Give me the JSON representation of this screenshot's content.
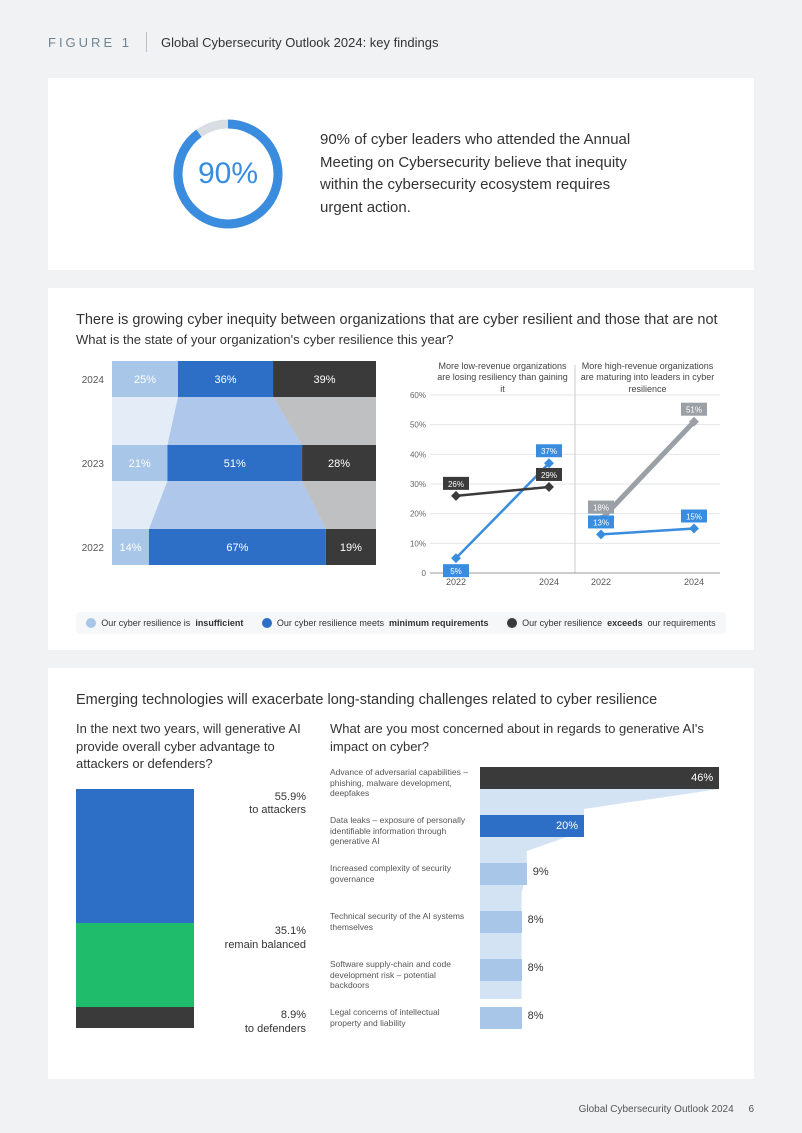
{
  "header": {
    "figure_label": "FIGURE 1",
    "title": "Global Cybersecurity Outlook 2024: key findings"
  },
  "hero": {
    "donut": {
      "percent": 90,
      "display": "90%",
      "ring_color": "#3a8dde",
      "track_color": "#d7dde3",
      "stroke_width": 9
    },
    "text_pct": "90%",
    "text_rest": " of cyber leaders who attended the Annual Meeting on Cybersecurity believe that inequity within the cybersecurity ecosystem requires urgent action."
  },
  "inequity": {
    "title": "There is growing cyber inequity between organizations that are cyber resilient and those that are not",
    "subtitle": "What is the state of your organization's cyber resilience this year?",
    "stacked": {
      "type": "stacked-bar-horizontal",
      "years": [
        "2024",
        "2023",
        "2022"
      ],
      "series_colors": [
        "#a7c6e8",
        "#2d6fc7",
        "#3a3a3a"
      ],
      "rows": [
        {
          "year": "2024",
          "values": [
            25,
            36,
            39
          ],
          "labels": [
            "25%",
            "36%",
            "39%"
          ]
        },
        {
          "year": "2023",
          "values": [
            21,
            51,
            28
          ],
          "labels": [
            "21%",
            "51%",
            "28%"
          ]
        },
        {
          "year": "2022",
          "values": [
            14,
            67,
            19
          ],
          "labels": [
            "14%",
            "67%",
            "19%"
          ]
        }
      ],
      "connector_color": "#cddff0"
    },
    "legend": [
      {
        "color": "#a7c6e8",
        "pre": "Our cyber resilience is ",
        "bold": "insufficient",
        "post": ""
      },
      {
        "color": "#2d6fc7",
        "pre": "Our cyber resilience meets ",
        "bold": "minimum requirements",
        "post": ""
      },
      {
        "color": "#3a3a3a",
        "pre": "Our cyber resilience ",
        "bold": "exceeds",
        "post": " our requirements"
      }
    ],
    "linecharts": {
      "type": "line",
      "ylim": [
        0,
        60
      ],
      "yticks": [
        0,
        "10%",
        "20%",
        "30%",
        "40%",
        "50%",
        "60%"
      ],
      "xticks": [
        "2022",
        "2024"
      ],
      "grid_color": "#e3e6e9",
      "axis_color": "#999",
      "panels": [
        {
          "title": "More low-revenue organizations are losing resiliency than gaining it",
          "series": [
            {
              "color": "#3a8dde",
              "marker": "diamond",
              "points": [
                {
                  "x": 0,
                  "y": 5,
                  "label": "5%"
                },
                {
                  "x": 1,
                  "y": 37,
                  "label": "37%"
                }
              ]
            },
            {
              "color": "#3a3a3a",
              "marker": "diamond",
              "points": [
                {
                  "x": 0,
                  "y": 26,
                  "label": "26%"
                },
                {
                  "x": 1,
                  "y": 29,
                  "label": "29%"
                }
              ]
            }
          ]
        },
        {
          "title": "More high-revenue organizations are maturing into leaders in cyber resilience",
          "series": [
            {
              "color": "#9aa0a6",
              "stroke_width": 5,
              "marker": "diamond",
              "points": [
                {
                  "x": 0,
                  "y": 18,
                  "label": "18%"
                },
                {
                  "x": 1,
                  "y": 51,
                  "label": "51%"
                }
              ]
            },
            {
              "color": "#3a8dde",
              "marker": "diamond",
              "points": [
                {
                  "x": 0,
                  "y": 13,
                  "label": "13%"
                },
                {
                  "x": 1,
                  "y": 15,
                  "label": "15%"
                }
              ]
            }
          ]
        }
      ]
    }
  },
  "emerging": {
    "title": "Emerging technologies will exacerbate long-standing challenges related to cyber resilience",
    "left": {
      "question": "In the next two years, will generative AI provide overall cyber advantage to attackers or defenders?",
      "type": "stacked-column",
      "segments": [
        {
          "pct": 55.9,
          "color": "#2d6fc7",
          "value_label": "55.9%",
          "text_label": "to attackers"
        },
        {
          "pct": 35.1,
          "color": "#1fbd6b",
          "value_label": "35.1%",
          "text_label": "remain balanced"
        },
        {
          "pct": 8.9,
          "color": "#3a3a3a",
          "value_label": "8.9%",
          "text_label": "to defenders"
        }
      ]
    },
    "right": {
      "question": "What are you most concerned about in regards to generative AI's impact on cyber?",
      "type": "funnel-bar-horizontal",
      "max": 50,
      "funnel_color": "#cfe0f2",
      "bars": [
        {
          "label": "Advance of adversarial capabilities – phishing, malware development, deepfakes",
          "pct": 46,
          "display": "46%",
          "color": "#3a3a3a"
        },
        {
          "label": "Data leaks – exposure of personally identifiable information through generative AI",
          "pct": 20,
          "display": "20%",
          "color": "#2d6fc7"
        },
        {
          "label": "Increased complexity of security governance",
          "pct": 9,
          "display": "9%",
          "color": "#a7c6e8"
        },
        {
          "label": "Technical security of the AI systems themselves",
          "pct": 8,
          "display": "8%",
          "color": "#a7c6e8"
        },
        {
          "label": "Software supply-chain and code development risk – potential backdoors",
          "pct": 8,
          "display": "8%",
          "color": "#a7c6e8"
        },
        {
          "label": "Legal concerns of intellectual property and liability",
          "pct": 8,
          "display": "8%",
          "color": "#a7c6e8"
        }
      ]
    }
  },
  "footer": {
    "doc": "Global Cybersecurity Outlook 2024",
    "page": "6"
  }
}
